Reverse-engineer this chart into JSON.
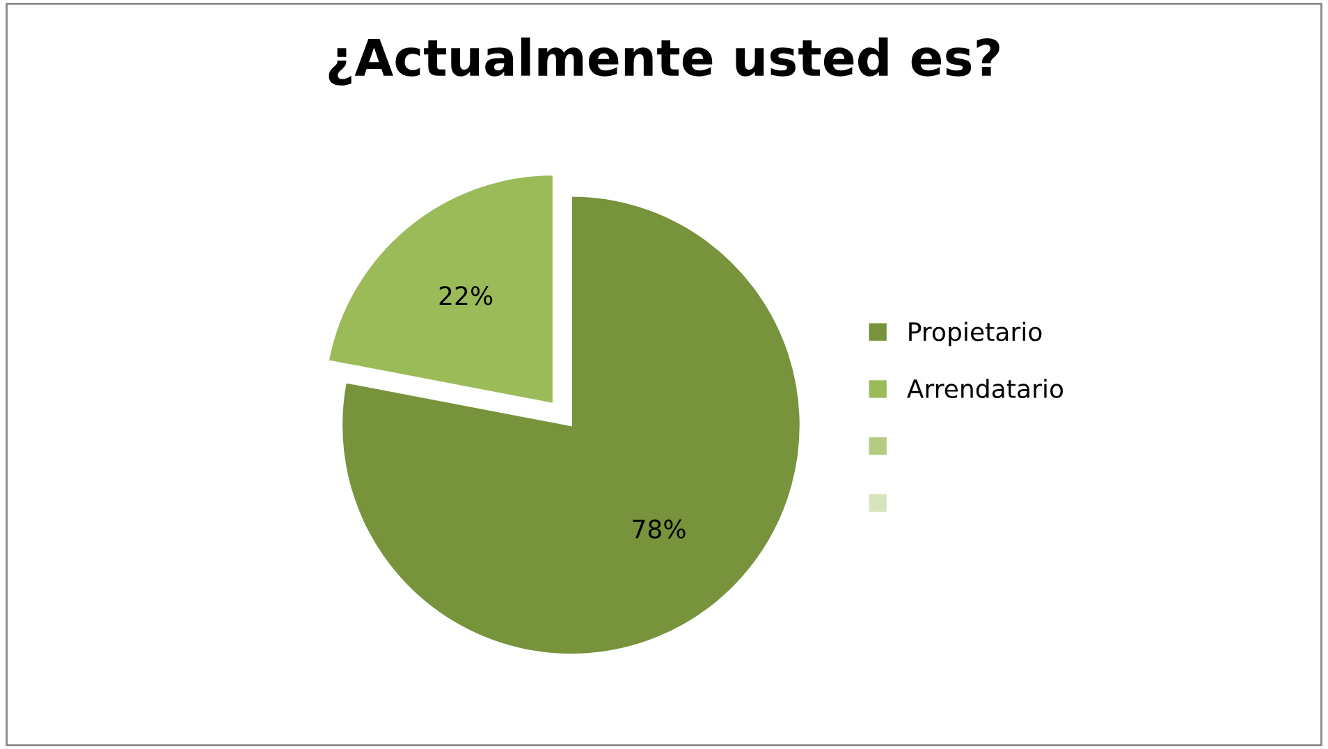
{
  "chart_data": {
    "type": "pie",
    "title": "¿Actualmente usted es?",
    "categories": [
      "Propietario",
      "Arrendatario",
      null,
      null
    ],
    "values": [
      78,
      22,
      0,
      0
    ],
    "colors": [
      "#77933c",
      "#9bbb59",
      "#b3cc82",
      "#d7e4bd"
    ],
    "value_labels": [
      "78%",
      "22%",
      null,
      null
    ],
    "legend": "right"
  }
}
